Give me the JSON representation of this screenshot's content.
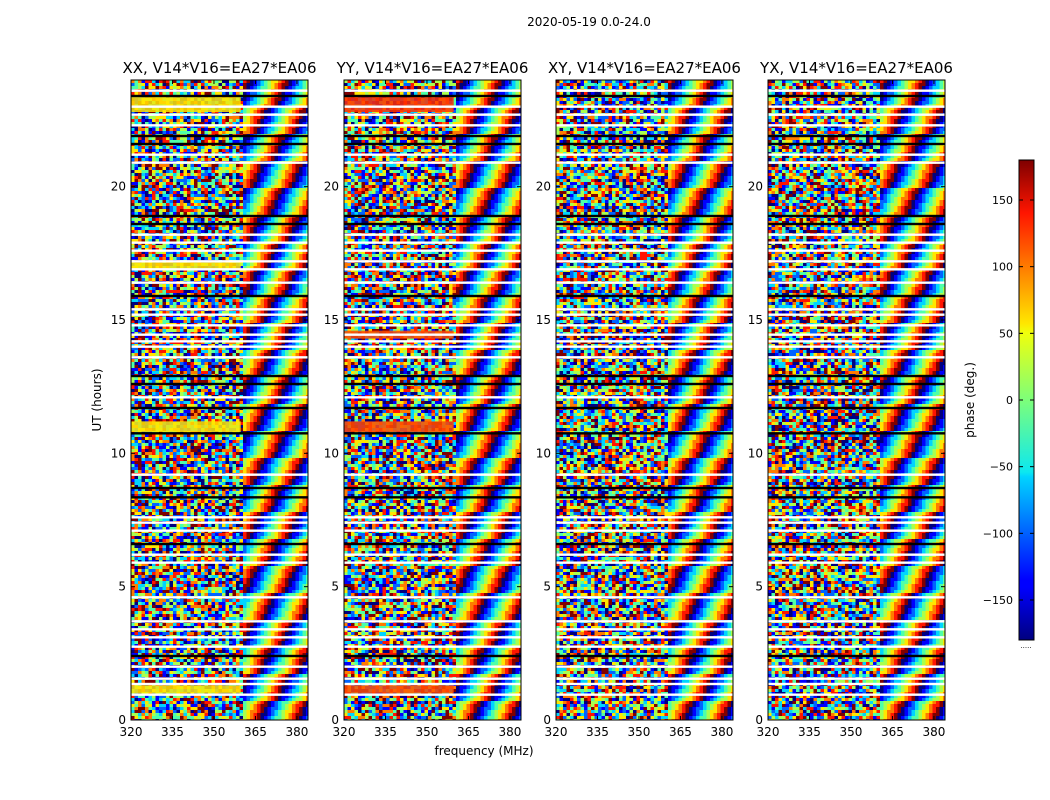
{
  "figure": {
    "suptitle": "2020-05-19 0.0-24.0"
  },
  "chart_data": {
    "type": "heatmap",
    "title": "2020-05-19 0.0-24.0",
    "xlabel": "frequency (MHz)",
    "ylabel": "UT (hours)",
    "xlim": [
      320,
      384
    ],
    "ylim": [
      0,
      24
    ],
    "xticks": [
      320,
      335,
      350,
      365,
      380
    ],
    "yticks": [
      0,
      5,
      10,
      15,
      20
    ],
    "panels": [
      {
        "title": "XX, V14*V16=EA27*EA06",
        "polarization": "XX"
      },
      {
        "title": "YY, V14*V16=EA27*EA06",
        "polarization": "YY"
      },
      {
        "title": "XY, V14*V16=EA27*EA06",
        "polarization": "XY"
      },
      {
        "title": "YX, V14*V16=EA27*EA06",
        "polarization": "YX"
      }
    ],
    "gaps_hours": [
      0.95,
      1.35,
      1.55,
      2.0,
      2.4,
      2.75,
      3.1,
      3.4,
      3.7,
      4.6,
      5.9,
      6.2,
      6.6,
      7.1,
      7.4,
      7.6,
      8.35,
      8.7,
      9.2,
      10.75,
      11.7,
      12.1,
      12.6,
      12.9,
      13.6,
      14.0,
      14.2,
      14.45,
      14.8,
      15.2,
      15.4,
      15.9,
      16.4,
      16.9,
      17.2,
      17.6,
      17.9,
      18.2,
      18.6,
      18.9,
      20.9,
      21.2,
      21.6,
      21.9,
      22.3,
      22.7,
      23.0,
      23.4,
      23.6
    ],
    "colorbar": {
      "label": "phase (deg.)",
      "range": [
        -180,
        180
      ],
      "ticks": [
        -150,
        -100,
        -50,
        0,
        50,
        100,
        150
      ],
      "colormap": "jet",
      "footnote": "....."
    }
  }
}
